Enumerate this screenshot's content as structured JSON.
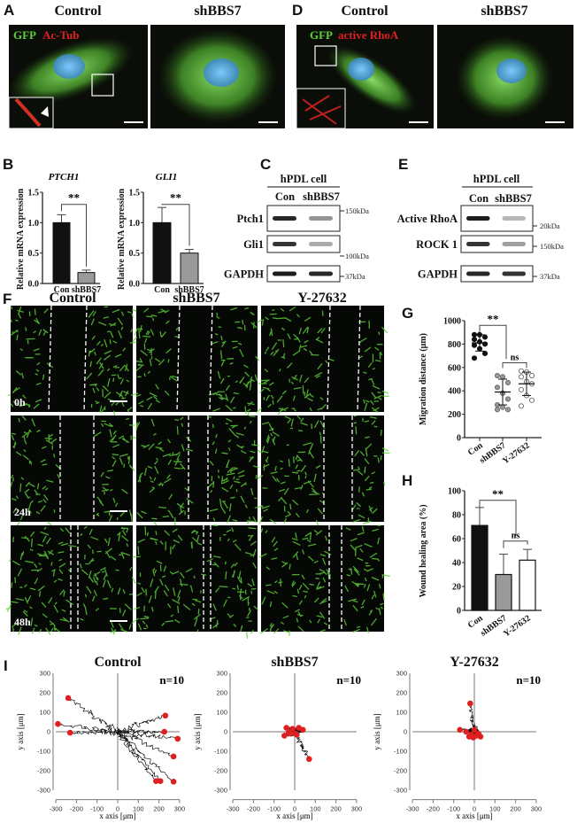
{
  "panel_a": {
    "label": "A",
    "col1": "Control",
    "col2": "shBBS7",
    "stain_green": "GFP",
    "stain_red": "Ac-Tub"
  },
  "panel_d": {
    "label": "D",
    "col1": "Control",
    "col2": "shBBS7",
    "stain_green": "GFP",
    "stain_red": "active RhoA"
  },
  "panel_b": {
    "label": "B"
  },
  "panel_c": {
    "label": "C",
    "header": "hPDL cell",
    "lanes": [
      "Con",
      "shBBS7"
    ],
    "rows": [
      "Ptch1",
      "Gli1",
      "GAPDH"
    ],
    "markers": [
      "150kDa",
      "100kDa",
      "37kDa"
    ]
  },
  "panel_e": {
    "label": "E",
    "header": "hPDL cell",
    "lanes": [
      "Con",
      "shBBS7"
    ],
    "rows": [
      "Active RhoA",
      "ROCK 1",
      "GAPDH"
    ],
    "markers": [
      "20kDa",
      "150kDa",
      "37kDa"
    ]
  },
  "panel_f": {
    "label": "F",
    "cols": [
      "Control",
      "shBBS7",
      "Y-27632"
    ],
    "rows": [
      "0h",
      "24h",
      "48h"
    ]
  },
  "panel_g": {
    "label": "G"
  },
  "panel_h": {
    "label": "H"
  },
  "panel_i": {
    "label": "I"
  },
  "colors": {
    "gfp": "#5fd13a",
    "red": "#e02020",
    "nucleus": "#4aa0e8",
    "bar_con": "#111111",
    "bar_sh": "#9a9a9a",
    "bar_y": "#ffffff",
    "endpoint": "#e02020"
  },
  "chart_data": [
    {
      "id": "B-PTCH1",
      "type": "bar",
      "title": "PTCH1",
      "ylabel": "Relative mRNA expression",
      "categories": [
        "Con",
        "shBBS7"
      ],
      "values": [
        1.0,
        0.18
      ],
      "errors": [
        0.13,
        0.04
      ],
      "ylim": [
        0,
        1.5
      ],
      "yticks": [
        "0.0",
        "0.5",
        "1.0",
        "1.5"
      ],
      "significance": "**"
    },
    {
      "id": "B-GLI1",
      "type": "bar",
      "title": "GLI1",
      "ylabel": "Relative mRNA expression",
      "categories": [
        "Con",
        "shBBS7"
      ],
      "values": [
        1.0,
        0.5
      ],
      "errors": [
        0.25,
        0.06
      ],
      "ylim": [
        0,
        1.5
      ],
      "yticks": [
        "0.0",
        "0.5",
        "1.0",
        "1.5"
      ],
      "significance": "**"
    },
    {
      "id": "G",
      "type": "scatter",
      "ylabel": "Migration distance (μm)",
      "categories": [
        "Con",
        "shBBS7",
        "Y-27632"
      ],
      "ylim": [
        0,
        1000
      ],
      "yticks": [
        "0",
        "200",
        "400",
        "600",
        "800",
        "1000"
      ],
      "points": [
        [
          880,
          880,
          860,
          840,
          820,
          800,
          790,
          760,
          720,
          680
        ],
        [
          530,
          520,
          470,
          430,
          380,
          330,
          280,
          260,
          240,
          240
        ],
        [
          570,
          560,
          530,
          520,
          480,
          460,
          410,
          360,
          320,
          270
        ]
      ],
      "means": [
        810,
        390,
        460
      ],
      "sd": [
        70,
        110,
        100
      ],
      "significance": [
        {
          "pair": [
            "Con",
            "shBBS7"
          ],
          "label": "**"
        },
        {
          "pair": [
            "shBBS7",
            "Y-27632"
          ],
          "label": "ns"
        }
      ]
    },
    {
      "id": "H",
      "type": "bar",
      "ylabel": "Wound healing area (%)",
      "categories": [
        "Con",
        "shBBS7",
        "Y-27632"
      ],
      "values": [
        71,
        30,
        42
      ],
      "errors": [
        15,
        17,
        9
      ],
      "ylim": [
        0,
        100
      ],
      "yticks": [
        "0",
        "20",
        "40",
        "60",
        "80",
        "100"
      ],
      "significance": [
        {
          "pair": [
            "Con",
            "shBBS7"
          ],
          "label": "**"
        },
        {
          "pair": [
            "shBBS7",
            "Y-27632"
          ],
          "label": "ns"
        }
      ]
    },
    {
      "id": "I",
      "type": "scatter",
      "xlabel": "x axis [μm]",
      "ylabel": "y axis [μm]",
      "xlim": [
        -300,
        300
      ],
      "ylim": [
        -300,
        300
      ],
      "ticks": [
        "-300",
        "-200",
        "-100",
        "0",
        "100",
        "200",
        "300"
      ],
      "plots": [
        {
          "title": "Control",
          "n_label": "n=10",
          "endpoints": [
            [
              -290,
              40
            ],
            [
              -240,
              173
            ],
            [
              -231,
              -5
            ],
            [
              231,
              83
            ],
            [
              226,
              0
            ],
            [
              291,
              -36
            ],
            [
              271,
              -127
            ],
            [
              186,
              -253
            ],
            [
              207,
              -253
            ],
            [
              271,
              -256
            ]
          ]
        },
        {
          "title": "shBBS7",
          "n_label": "n=10",
          "endpoints": [
            [
              -40,
              20
            ],
            [
              -20,
              -10
            ],
            [
              -50,
              -20
            ],
            [
              10,
              -15
            ],
            [
              -10,
              15
            ],
            [
              20,
              20
            ],
            [
              -30,
              -5
            ],
            [
              5,
              -10
            ],
            [
              40,
              10
            ],
            [
              70,
              -140
            ]
          ]
        },
        {
          "title": "Y-27632",
          "n_label": "n=10",
          "endpoints": [
            [
              -20,
              145
            ],
            [
              -70,
              10
            ],
            [
              -40,
              0
            ],
            [
              -25,
              -25
            ],
            [
              10,
              -20
            ],
            [
              20,
              -10
            ],
            [
              -5,
              -30
            ],
            [
              30,
              -25
            ],
            [
              0,
              10
            ],
            [
              -15,
              -15
            ]
          ]
        }
      ]
    }
  ]
}
